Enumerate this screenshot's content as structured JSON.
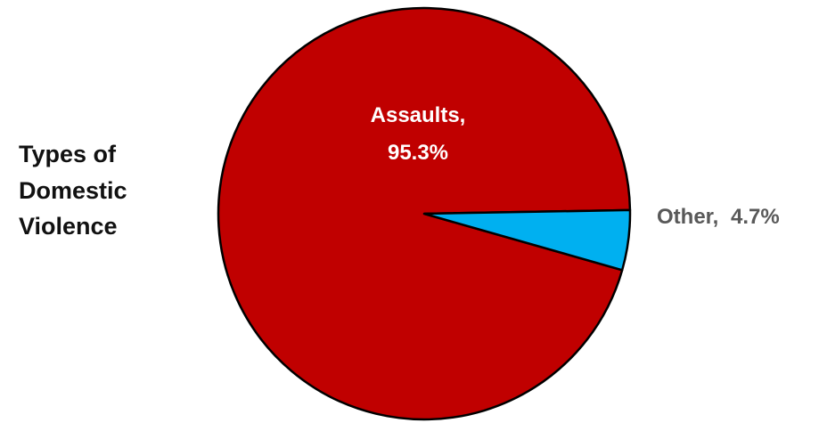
{
  "chart_data": {
    "type": "pie",
    "title_lines": [
      "Types of",
      "Domestic",
      "Violence"
    ],
    "slices": [
      {
        "label": "Assaults,",
        "value_text": "95.3%",
        "value": 95.3,
        "color": "#c00000"
      },
      {
        "label": "Other,",
        "value_text": "4.7%",
        "value": 4.7,
        "color": "#00b0f0"
      }
    ],
    "label_colors": {
      "Assaults": "#ffffff",
      "Other": "#595959"
    }
  }
}
